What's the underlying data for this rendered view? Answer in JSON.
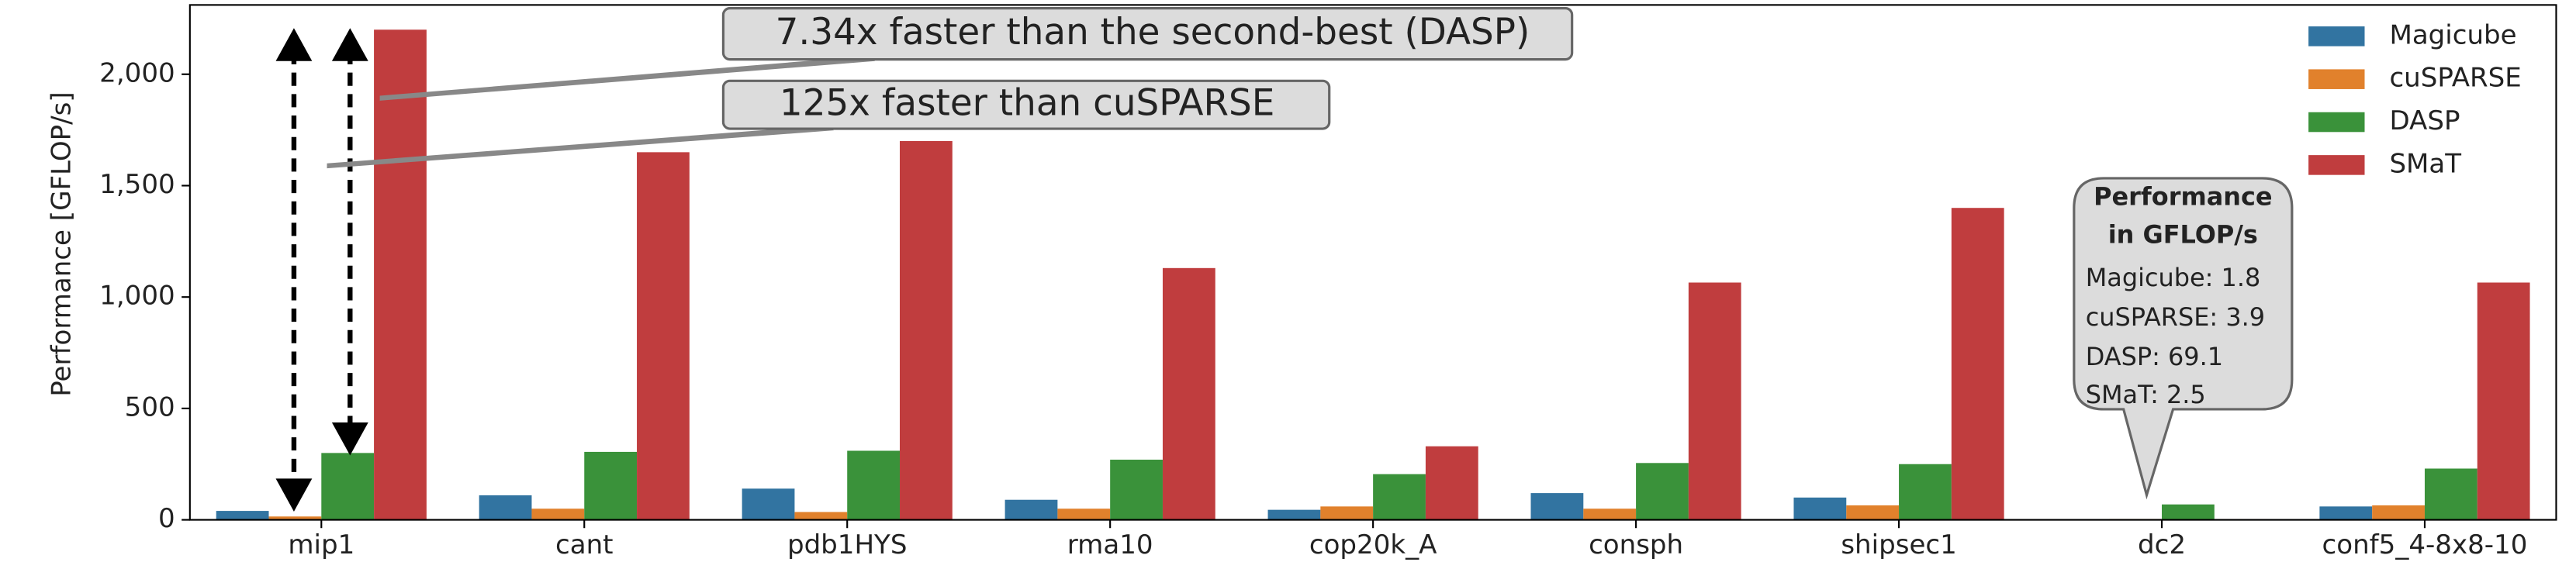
{
  "chart_data": {
    "type": "bar",
    "y_label": "Performance [GFLOP/s]",
    "categories": [
      "mip1",
      "cant",
      "pdb1HYS",
      "rma10",
      "cop20k_A",
      "consph",
      "shipsec1",
      "dc2",
      "conf5_4-8x8-10"
    ],
    "series": [
      {
        "name": "Magicube",
        "color": "#3274a1",
        "values": [
          40,
          110,
          140,
          90,
          45,
          120,
          100,
          1.8,
          60
        ]
      },
      {
        "name": "cuSPARSE",
        "color": "#e1812c",
        "values": [
          15,
          50,
          35,
          50,
          60,
          50,
          65,
          3.9,
          65
        ]
      },
      {
        "name": "DASP",
        "color": "#3a923a",
        "values": [
          300,
          305,
          310,
          270,
          205,
          255,
          250,
          69.1,
          230
        ]
      },
      {
        "name": "SMaT",
        "color": "#c03d3e",
        "values": [
          2200,
          1650,
          1700,
          1130,
          330,
          1065,
          1400,
          2.5,
          1065
        ]
      }
    ],
    "ylim": [
      0,
      2311
    ],
    "yticks": [
      0,
      500,
      {
        "value": 1000,
        "label": "1,000"
      },
      {
        "value": 1500,
        "label": "1,500"
      },
      {
        "value": 2000,
        "label": "2,000"
      }
    ],
    "legend": "upper right",
    "annotations": [
      "7.34x faster than the second-best (DASP)",
      "125x faster than cuSPARSE"
    ],
    "callout": [
      "Performance",
      "in GFLOP/s",
      "Magicube: 1.8",
      "cuSPARSE: 3.9",
      "DASP:  69.1",
      "SMaT: 2.5"
    ]
  }
}
